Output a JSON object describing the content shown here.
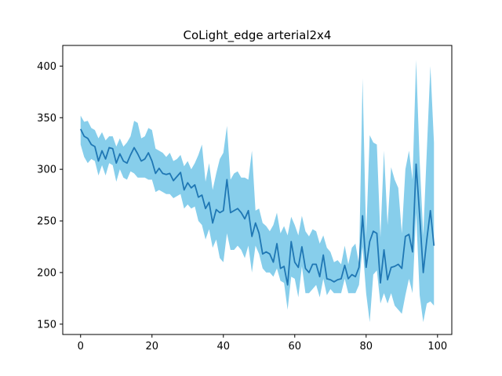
{
  "chart_data": {
    "type": "line",
    "title": "CoLight_edge arterial2x4",
    "xlabel": "",
    "ylabel": "",
    "xlim": [
      -5,
      104
    ],
    "ylim": [
      140,
      420
    ],
    "xticks": [
      0,
      20,
      40,
      60,
      80,
      100
    ],
    "yticks": [
      150,
      200,
      250,
      300,
      350,
      400
    ],
    "grid": false,
    "colors": {
      "line": "#1f77b4",
      "band": "#87ceeb"
    },
    "series": [
      {
        "x": [
          0,
          1,
          2,
          3,
          4,
          5,
          6,
          7,
          8,
          9,
          10,
          11,
          12,
          13,
          14,
          15,
          16,
          17,
          18,
          19,
          20,
          21,
          22,
          23,
          24,
          25,
          26,
          27,
          28,
          29,
          30,
          31,
          32,
          33,
          34,
          35,
          36,
          37,
          38,
          39,
          40,
          41,
          42,
          43,
          44,
          45,
          46,
          47,
          48,
          49,
          50,
          51,
          52,
          53,
          54,
          55,
          56,
          57,
          58,
          59,
          60,
          61,
          62,
          63,
          64,
          65,
          66,
          67,
          68,
          69,
          70,
          71,
          72,
          73,
          74,
          75,
          76,
          77,
          78,
          79,
          80,
          81,
          82,
          83,
          84,
          85,
          86,
          87,
          88,
          89,
          90,
          91,
          92,
          93,
          94,
          95,
          96,
          97,
          98,
          99
        ],
        "mean": [
          339,
          332,
          330,
          324,
          322,
          308,
          318,
          310,
          321,
          320,
          306,
          315,
          308,
          306,
          314,
          321,
          315,
          308,
          310,
          316,
          308,
          296,
          301,
          296,
          295,
          296,
          289,
          293,
          297,
          280,
          287,
          282,
          285,
          273,
          275,
          262,
          268,
          248,
          261,
          258,
          260,
          290,
          258,
          260,
          262,
          258,
          252,
          260,
          235,
          248,
          238,
          218,
          220,
          218,
          210,
          228,
          204,
          206,
          188,
          230,
          210,
          205,
          225,
          204,
          200,
          208,
          208,
          196,
          217,
          194,
          193,
          191,
          193,
          194,
          207,
          194,
          198,
          196,
          205,
          255,
          205,
          230,
          240,
          238,
          190,
          222,
          193,
          205,
          206,
          208,
          204,
          235,
          237,
          220,
          305,
          255,
          200,
          232,
          260,
          226
        ],
        "upper": [
          352,
          346,
          347,
          340,
          338,
          330,
          336,
          328,
          332,
          332,
          322,
          330,
          322,
          326,
          332,
          347,
          345,
          330,
          332,
          340,
          338,
          320,
          318,
          316,
          312,
          316,
          308,
          310,
          314,
          303,
          308,
          300,
          306,
          314,
          324,
          288,
          306,
          280,
          296,
          310,
          316,
          342,
          290,
          296,
          298,
          292,
          292,
          290,
          318,
          260,
          262,
          248,
          245,
          240,
          246,
          258,
          238,
          245,
          236,
          254,
          246,
          236,
          255,
          240,
          235,
          242,
          240,
          228,
          236,
          224,
          220,
          210,
          212,
          208,
          226,
          208,
          224,
          228,
          208,
          388,
          234,
          333,
          326,
          324,
          234,
          318,
          246,
          302,
          290,
          282,
          238,
          300,
          318,
          290,
          406,
          308,
          236,
          318,
          400,
          326
        ],
        "lower": [
          324,
          312,
          306,
          310,
          308,
          294,
          304,
          294,
          306,
          304,
          288,
          300,
          292,
          290,
          298,
          296,
          292,
          292,
          292,
          290,
          290,
          278,
          280,
          278,
          276,
          276,
          272,
          274,
          276,
          262,
          266,
          262,
          264,
          250,
          246,
          232,
          242,
          224,
          232,
          214,
          210,
          238,
          222,
          222,
          226,
          222,
          214,
          226,
          200,
          226,
          218,
          204,
          200,
          200,
          196,
          204,
          192,
          190,
          164,
          196,
          194,
          176,
          206,
          180,
          180,
          184,
          188,
          176,
          194,
          178,
          184,
          180,
          180,
          180,
          194,
          180,
          180,
          180,
          188,
          225,
          180,
          152,
          198,
          202,
          170,
          180,
          170,
          180,
          168,
          164,
          160,
          178,
          194,
          180,
          258,
          178,
          152,
          170,
          172,
          168
        ]
      }
    ]
  }
}
